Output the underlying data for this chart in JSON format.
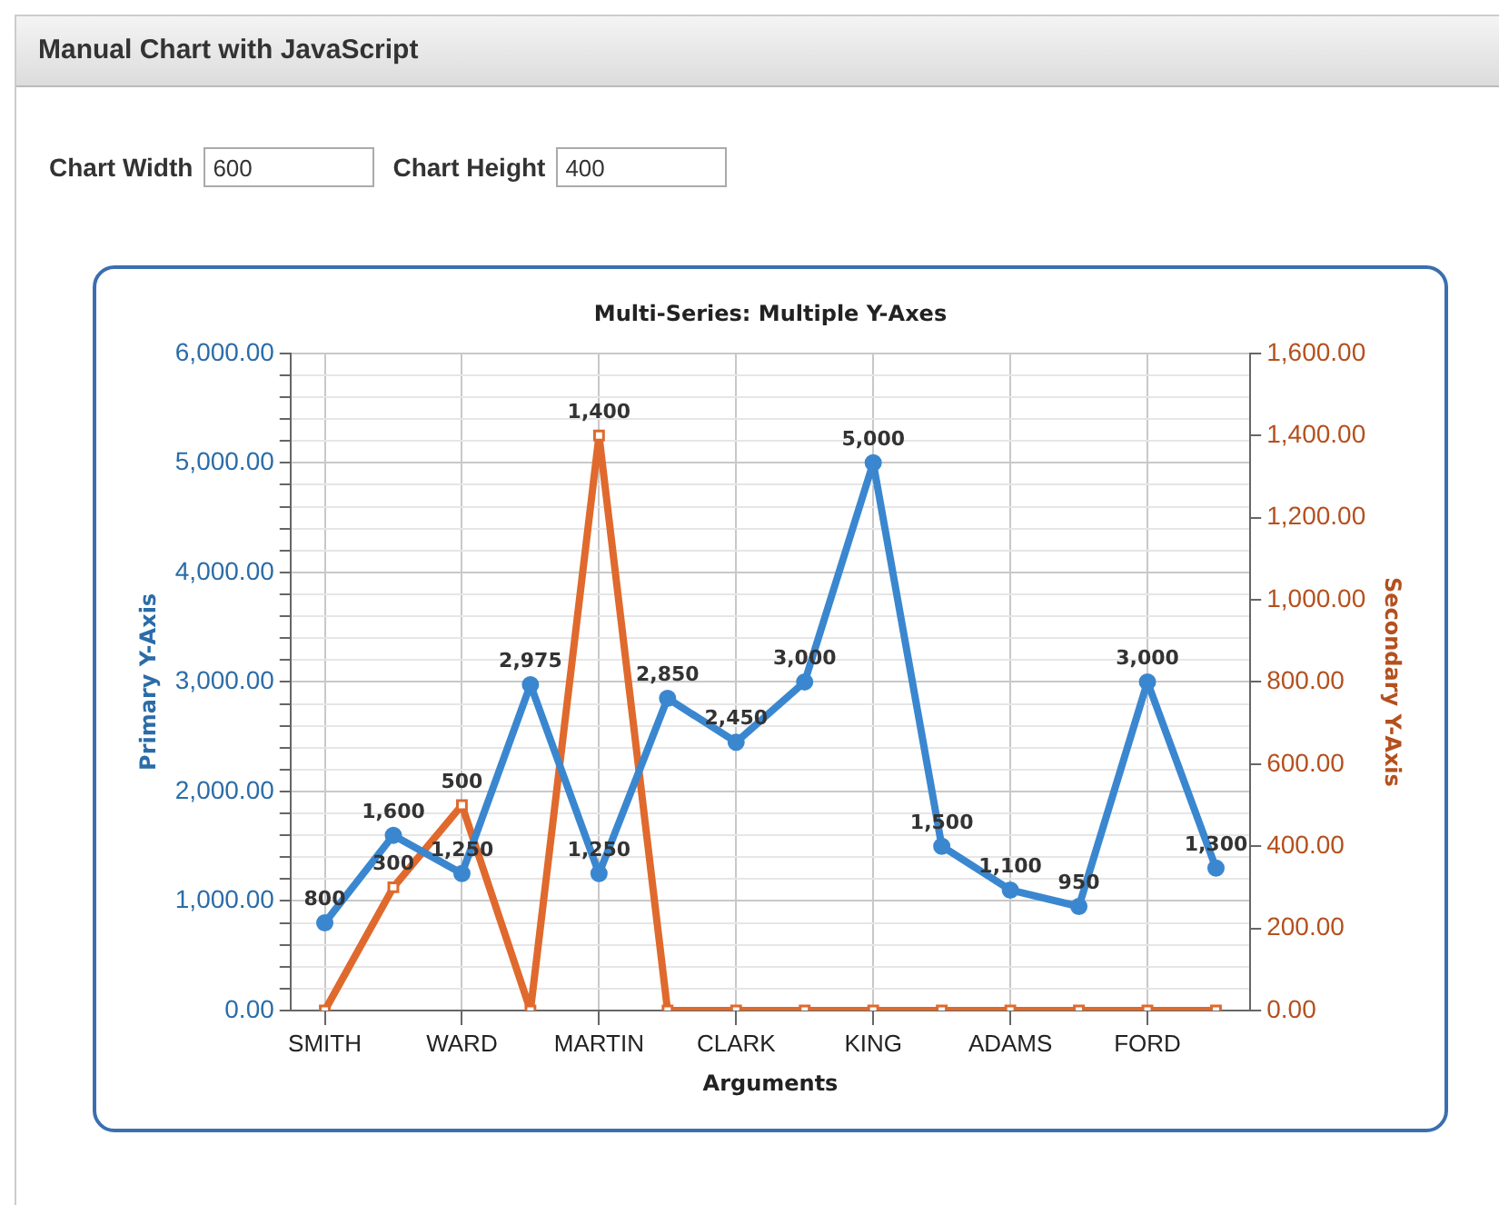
{
  "chart_data": {
    "type": "line",
    "title": "Multi-Series: Multiple Y-Axes",
    "xlabel": "Arguments",
    "ylabel": "Primary Y-Axis",
    "y2label": "Secondary Y-Axis",
    "annotations": [
      "Manual Chart with JavaScript",
      "Chart Width",
      "600",
      "Chart Height",
      "400"
    ],
    "categories": [
      "SMITH",
      null,
      "WARD",
      null,
      "MARTIN",
      null,
      "CLARK",
      null,
      "KING",
      null,
      "ADAMS",
      null,
      "FORD",
      null
    ],
    "series": [
      {
        "color": "#3a87d0",
        "marker": "circle",
        "values": [
          800,
          1600,
          1250,
          2975,
          1250,
          2850,
          2450,
          3000,
          5000,
          1500,
          1100,
          950,
          3000,
          1300
        ],
        "value_labels": [
          "800",
          "1,600",
          "1,250",
          "2,975",
          "1,250",
          "2,850",
          "2,450",
          "3,000",
          "5,000",
          "1,500",
          "1,100",
          "950",
          "3,000",
          "1,300"
        ]
      },
      {
        "color": "#e0692d",
        "marker": "square",
        "axis": "y2",
        "values": [
          0,
          300,
          500,
          0,
          1400,
          0,
          0,
          0,
          0,
          0,
          0,
          0,
          0,
          0
        ],
        "value_labels": [
          null,
          "300",
          "500",
          null,
          "1,400",
          null,
          null,
          null,
          null,
          null,
          null,
          null,
          null,
          null
        ]
      }
    ],
    "ylim": [
      0,
      6000
    ],
    "yticks": [
      {
        "value": 0,
        "label": "0.00"
      },
      {
        "value": 200,
        "label": null
      },
      {
        "value": 400,
        "label": null
      },
      {
        "value": 600,
        "label": null
      },
      {
        "value": 800,
        "label": null
      },
      {
        "value": 1000,
        "label": "1,000.00"
      },
      {
        "value": 1200,
        "label": null
      },
      {
        "value": 1400,
        "label": null
      },
      {
        "value": 1600,
        "label": null
      },
      {
        "value": 1800,
        "label": null
      },
      {
        "value": 2000,
        "label": "2,000.00"
      },
      {
        "value": 2200,
        "label": null
      },
      {
        "value": 2400,
        "label": null
      },
      {
        "value": 2600,
        "label": null
      },
      {
        "value": 2800,
        "label": null
      },
      {
        "value": 3000,
        "label": "3,000.00"
      },
      {
        "value": 3200,
        "label": null
      },
      {
        "value": 3400,
        "label": null
      },
      {
        "value": 3600,
        "label": null
      },
      {
        "value": 3800,
        "label": null
      },
      {
        "value": 4000,
        "label": "4,000.00"
      },
      {
        "value": 4200,
        "label": null
      },
      {
        "value": 4400,
        "label": null
      },
      {
        "value": 4600,
        "label": null
      },
      {
        "value": 4800,
        "label": null
      },
      {
        "value": 5000,
        "label": "5,000.00"
      },
      {
        "value": 5200,
        "label": null
      },
      {
        "value": 5400,
        "label": null
      },
      {
        "value": 5600,
        "label": null
      },
      {
        "value": 5800,
        "label": null
      },
      {
        "value": 6000,
        "label": "6,000.00"
      }
    ],
    "y2lim": [
      0,
      1600
    ],
    "y2ticks": [
      {
        "value": 0,
        "label": "0.00"
      },
      {
        "value": 200,
        "label": "200.00"
      },
      {
        "value": 400,
        "label": "400.00"
      },
      {
        "value": 600,
        "label": "600.00"
      },
      {
        "value": 800,
        "label": "800.00"
      },
      {
        "value": 1000,
        "label": "1,000.00"
      },
      {
        "value": 1200,
        "label": "1,200.00"
      },
      {
        "value": 1400,
        "label": "1,400.00"
      },
      {
        "value": 1600,
        "label": "1,600.00"
      }
    ],
    "grid": true,
    "legend": false,
    "line_style": "solid"
  }
}
